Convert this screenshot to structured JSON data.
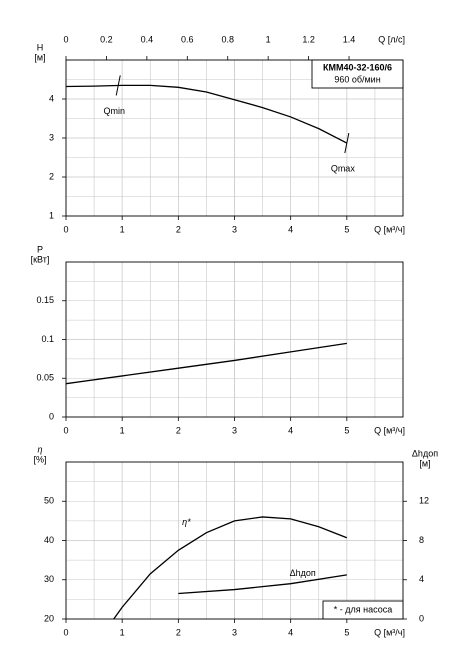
{
  "chart_data": [
    {
      "type": "line",
      "title": "КММ40-32-160/6",
      "subtitle": "960 об/мин",
      "y_label": "H",
      "y_unit": "[м]",
      "x_label": "Q [м³/ч]",
      "x2_label": "Q [л/с]",
      "xlim": [
        0,
        6
      ],
      "xticks": [
        0,
        1,
        2,
        3,
        4,
        5
      ],
      "x2lim": [
        0,
        1.667
      ],
      "x2ticks": [
        0,
        0.2,
        0.4,
        0.6,
        0.8,
        1,
        1.2,
        1.4
      ],
      "ylim": [
        1,
        5
      ],
      "yticks": [
        1,
        2,
        3,
        4
      ],
      "grid": true,
      "series": [
        {
          "color": "#000000",
          "x": [
            0,
            0.5,
            1,
            1.5,
            2,
            2.5,
            3,
            3.5,
            4,
            4.5,
            5
          ],
          "values": [
            4.32,
            4.33,
            4.35,
            4.35,
            4.3,
            4.18,
            3.98,
            3.78,
            3.54,
            3.24,
            2.87
          ]
        }
      ],
      "annotations": [
        {
          "text": "Qmin",
          "x": 0.93
        },
        {
          "text": "Qmax",
          "x": 5
        }
      ]
    },
    {
      "type": "line",
      "y_label": "P",
      "y_unit": "[кВт]",
      "x_label": "Q [м³/ч]",
      "xlim": [
        0,
        6
      ],
      "xticks": [
        0,
        1,
        2,
        3,
        4,
        5
      ],
      "ylim": [
        0,
        0.2
      ],
      "yticks": [
        0,
        0.05,
        0.1,
        0.15
      ],
      "grid": true,
      "series": [
        {
          "color": "#000000",
          "x": [
            0,
            1,
            2,
            3,
            4,
            5
          ],
          "values": [
            0.043,
            0.053,
            0.063,
            0.073,
            0.084,
            0.095
          ]
        }
      ]
    },
    {
      "type": "line",
      "y_label": "η",
      "y_unit": "[%]",
      "y2_label": "Δhдоп",
      "y2_unit": "[м]",
      "x_label": "Q [м³/ч]",
      "xlim": [
        0,
        6
      ],
      "xticks": [
        0,
        1,
        2,
        3,
        4,
        5
      ],
      "ylim": [
        20,
        60
      ],
      "yticks": [
        20,
        30,
        40,
        50
      ],
      "y2lim": [
        0,
        16
      ],
      "y2ticks": [
        0,
        4,
        8,
        12
      ],
      "grid": true,
      "series": [
        {
          "name": "η*",
          "color": "#000000",
          "x": [
            0.85,
            1,
            1.5,
            2,
            2.5,
            3,
            3.5,
            4,
            4.5,
            5
          ],
          "values": [
            20,
            23,
            31.5,
            37.5,
            42,
            45,
            46,
            45.5,
            43.5,
            40.7
          ]
        },
        {
          "name": "Δhдоп",
          "color": "#000000",
          "axis": "y2",
          "x": [
            2,
            3,
            4,
            5
          ],
          "values": [
            2.6,
            3.0,
            3.6,
            4.5
          ]
        }
      ],
      "note": "* - для насоса"
    }
  ]
}
